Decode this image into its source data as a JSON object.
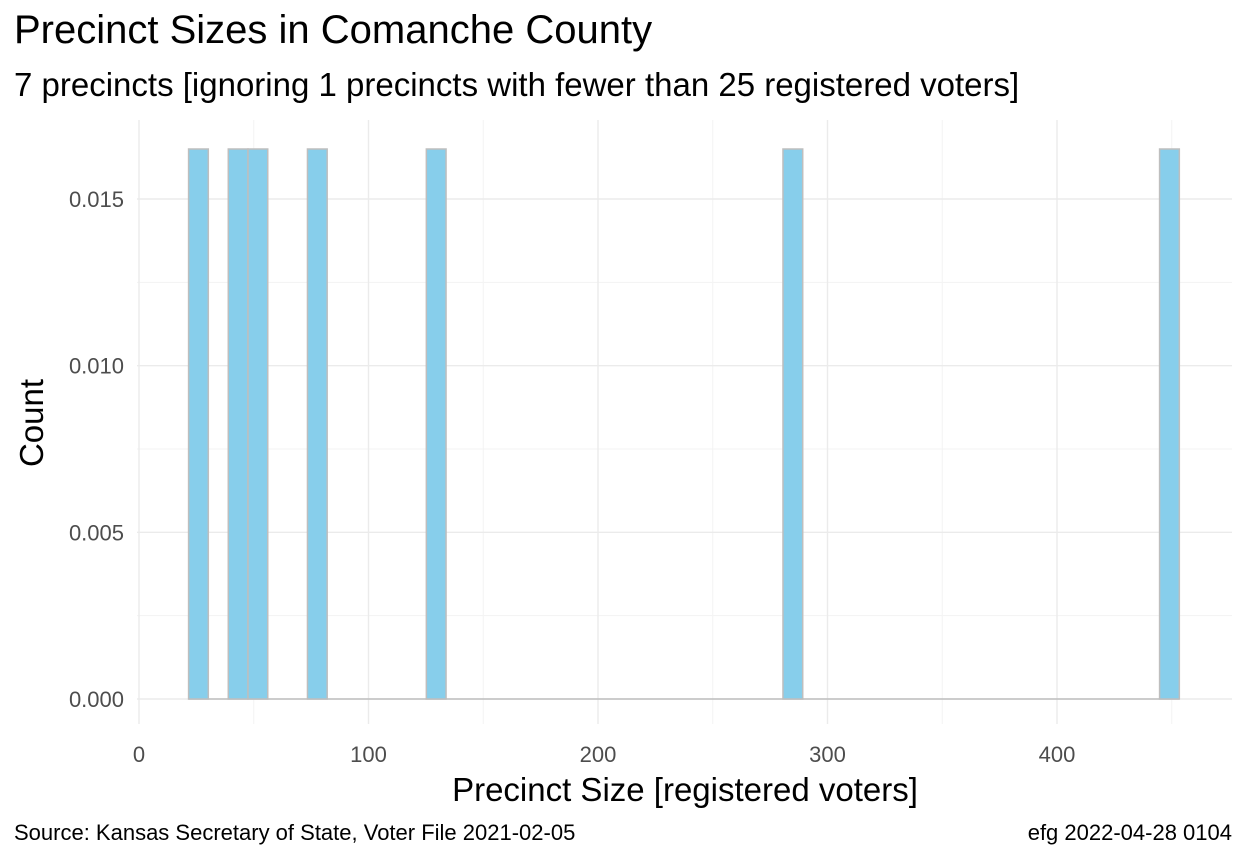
{
  "chart_data": {
    "type": "bar",
    "title": "Precinct Sizes in Comanche County",
    "subtitle": "7 precincts [ignoring 1 precincts with fewer than 25 registered voters]",
    "xlabel": "Precinct Size [registered voters]",
    "ylabel": "Count",
    "xlim": [
      0,
      480
    ],
    "ylim": [
      0,
      0.0165
    ],
    "x_ticks": [
      0,
      100,
      200,
      300,
      400
    ],
    "y_ticks": [
      0.0,
      0.005,
      0.01,
      0.015
    ],
    "y_tick_labels": [
      "0.000",
      "0.005",
      "0.010",
      "0.015"
    ],
    "bin_width": 8.6,
    "bins": [
      {
        "x": 25.9,
        "value": 0.0165
      },
      {
        "x": 43.2,
        "value": 0.0165
      },
      {
        "x": 51.8,
        "value": 0.0165
      },
      {
        "x": 77.7,
        "value": 0.0165
      },
      {
        "x": 129.5,
        "value": 0.0165
      },
      {
        "x": 284.9,
        "value": 0.0165
      },
      {
        "x": 449.0,
        "value": 0.0165
      }
    ],
    "bar_color": "#87CEEB",
    "bar_outline": "#BEBEBE",
    "grid": true
  },
  "caption": {
    "source": "Source:  Kansas Secretary of State, Voter File  2021-02-05",
    "credit": "efg 2022-04-28 0104"
  }
}
